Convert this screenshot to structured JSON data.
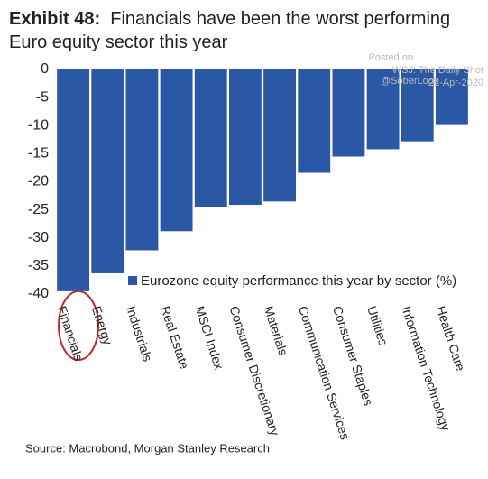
{
  "chart_data": {
    "type": "bar",
    "exhibit": "Exhibit 48:",
    "title": "Financials have been the worst performing Euro equity sector this year",
    "categories": [
      "Financials",
      "Energy",
      "Industrials",
      "Real Estate",
      "MSCI Index",
      "Consumer Discretionary",
      "Materials",
      "Communication Services",
      "Consumer Staples",
      "Utilities",
      "Information Technology",
      "Health Care"
    ],
    "series": [
      {
        "name": "Eurozone equity performance this year by sector (%)",
        "color": "#2a58a5",
        "values": [
          -39.5,
          -36.3,
          -32.2,
          -28.8,
          -24.5,
          -24.1,
          -23.5,
          -18.4,
          -15.5,
          -14.2,
          -12.8,
          -9.9
        ]
      }
    ],
    "ylim": [
      -40,
      0
    ],
    "yticks": [
      0,
      -5,
      -10,
      -15,
      -20,
      -25,
      -30,
      -35,
      -40
    ],
    "watermark": [
      "Posted on",
      "WSJ: The Daily Shot",
      "22-Apr-2020",
      "@SoberLook"
    ],
    "source": "Source: Macrobond, Morgan Stanley Research"
  }
}
